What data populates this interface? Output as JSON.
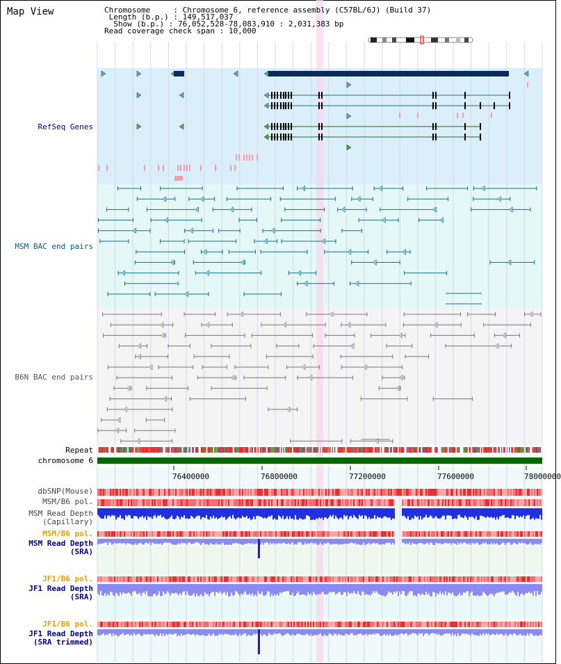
{
  "header": {
    "title": "Map View",
    "chromosome_label": "Chromosome",
    "chromosome_value": "Chromosome 6, reference assembly (C57BL/6J) (Build 37)",
    "length_label": "Length (b.p.)",
    "length_value": "149,517,037",
    "show_label": "Show (b.p.)",
    "show_value": "76,052,528-78,083,910 : 2,031,383 bp",
    "coverage_label": "Read coverage check span",
    "coverage_value": "10,000"
  },
  "tracks": {
    "refseq": "RefSeq Genes",
    "msm_bac": "MSM BAC end pairs",
    "b6n_bac": "B6N BAC end pairs",
    "repeat": "Repeat",
    "chromosome": "chromosome 6",
    "dbsnp": "dbSNP(Mouse)",
    "msm_b6_pol_1": "MSM/B6 pol.",
    "msm_read_depth_cap_1": "MSM Read Depth",
    "msm_read_depth_cap_2": "(Capillary)",
    "msm_b6_pol_2": "MSM/B6 pol.",
    "msm_read_depth_sra_1": "MSM Read Depth",
    "msm_read_depth_sra_2": "(SRA)",
    "jf1_b6_pol_1": "JF1/B6 pol.",
    "jf1_read_depth_sra_1": "JF1 Read Depth",
    "jf1_read_depth_sra_2": "(SRA)",
    "jf1_b6_pol_2": "JF1/B6 pol.",
    "jf1_read_depth_trim_1": "JF1 Read Depth",
    "jf1_read_depth_trim_2": "(SRA trimmed)"
  },
  "axis": {
    "ticks": [
      "76400000",
      "76800000",
      "77200000",
      "77600000",
      "78000000"
    ]
  },
  "colors": {
    "refseq_bg": "#dbeffa",
    "msm_bg": "#e4f8f8",
    "b6n_bg": "#f4f4f4",
    "highlight": "#f8d8f0",
    "gene_dark": "#0a2a5a",
    "gene_blue": "#1a6a8a",
    "gene_green": "#1a6a1a",
    "bac_teal": "#1a6a7a",
    "bac_gray": "#777777",
    "chromosome": "#006600",
    "snp_red": "#f05050",
    "depth_blue": "#2030e0",
    "depth_light": "#8a8af0",
    "label_orange": "#e8a000",
    "label_navy": "#00008b",
    "label_teal": "#006080"
  }
}
